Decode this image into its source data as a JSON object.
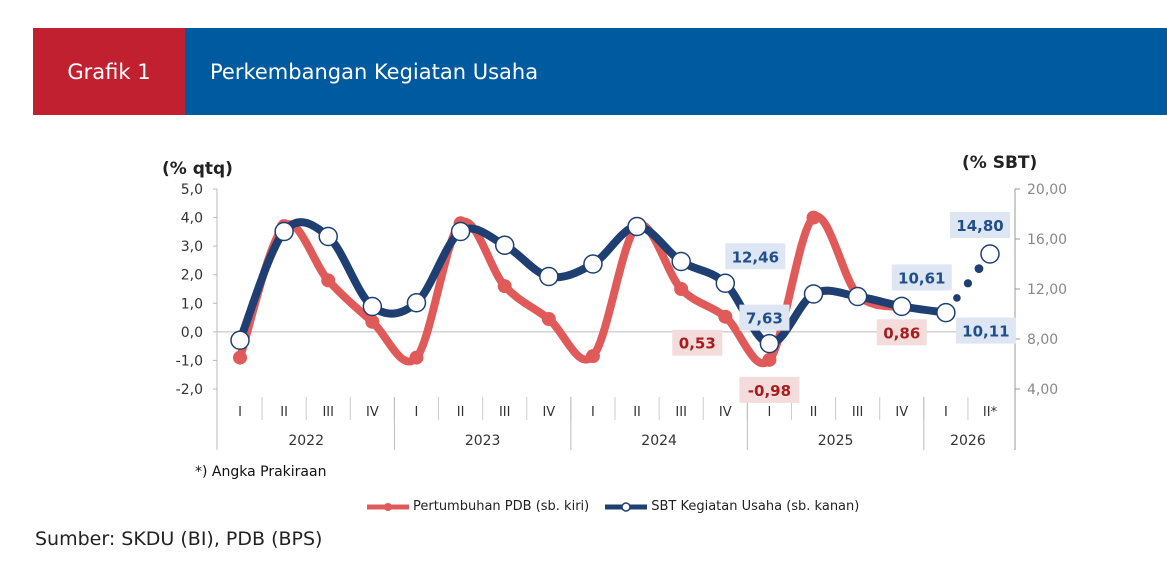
{
  "header": {
    "label": "Grafik 1",
    "title": "Perkembangan Kegiatan Usaha"
  },
  "source": "Sumber: SKDU (BI), PDB (BPS)",
  "note": "*) Angka Prakiraan",
  "colors": {
    "pdb": "#e05a5a",
    "sbt": "#1f3f72",
    "header_red": "#c0202f",
    "header_blue": "#005aa0"
  },
  "chart_data": {
    "type": "line",
    "quarters": [
      "I",
      "II",
      "III",
      "IV",
      "I",
      "II",
      "III",
      "IV",
      "I",
      "II",
      "III",
      "IV",
      "I",
      "II",
      "III",
      "IV",
      "I",
      "II*"
    ],
    "years": [
      {
        "label": "2022",
        "n": 4
      },
      {
        "label": "2023",
        "n": 4
      },
      {
        "label": "2024",
        "n": 4
      },
      {
        "label": "2025",
        "n": 4
      },
      {
        "label": "2026",
        "n": 2
      }
    ],
    "left_axis": {
      "label": "(% qtq)",
      "range": [
        -2,
        5
      ],
      "ticks": [
        "5,0",
        "4,0",
        "3,0",
        "2,0",
        "1,0",
        "0,0",
        "-1,0",
        "-2,0"
      ]
    },
    "right_axis": {
      "label": "(% SBT)",
      "range": [
        4,
        20
      ],
      "ticks": [
        "20,00",
        "16,00",
        "12,00",
        "8,00",
        "4,00"
      ]
    },
    "series": [
      {
        "name": "Pertumbuhan PDB (sb. kiri)",
        "axis": "left",
        "values": [
          -0.9,
          3.7,
          1.8,
          0.35,
          -0.9,
          3.8,
          1.6,
          0.45,
          -0.85,
          3.7,
          1.5,
          0.53,
          -0.98,
          4.0,
          1.3,
          0.86,
          null,
          null
        ]
      },
      {
        "name": "SBT Kegiatan Usaha (sb. kanan)",
        "axis": "right",
        "values": [
          7.9,
          16.6,
          16.2,
          10.6,
          10.9,
          16.6,
          15.5,
          13.0,
          14.0,
          17.0,
          14.2,
          12.46,
          7.63,
          11.6,
          11.4,
          10.61,
          10.11,
          14.8
        ],
        "projected_from_index": 16
      }
    ],
    "data_labels": [
      {
        "series": 1,
        "index": 11,
        "text": "12,46"
      },
      {
        "series": 1,
        "index": 12,
        "text": "7,63"
      },
      {
        "series": 1,
        "index": 15,
        "text": "10,61"
      },
      {
        "series": 1,
        "index": 16,
        "text": "10,11"
      },
      {
        "series": 1,
        "index": 17,
        "text": "14,80"
      },
      {
        "series": 0,
        "index": 11,
        "text": "0,53"
      },
      {
        "series": 0,
        "index": 12,
        "text": "-0,98"
      },
      {
        "series": 0,
        "index": 15,
        "text": "0,86"
      }
    ]
  }
}
